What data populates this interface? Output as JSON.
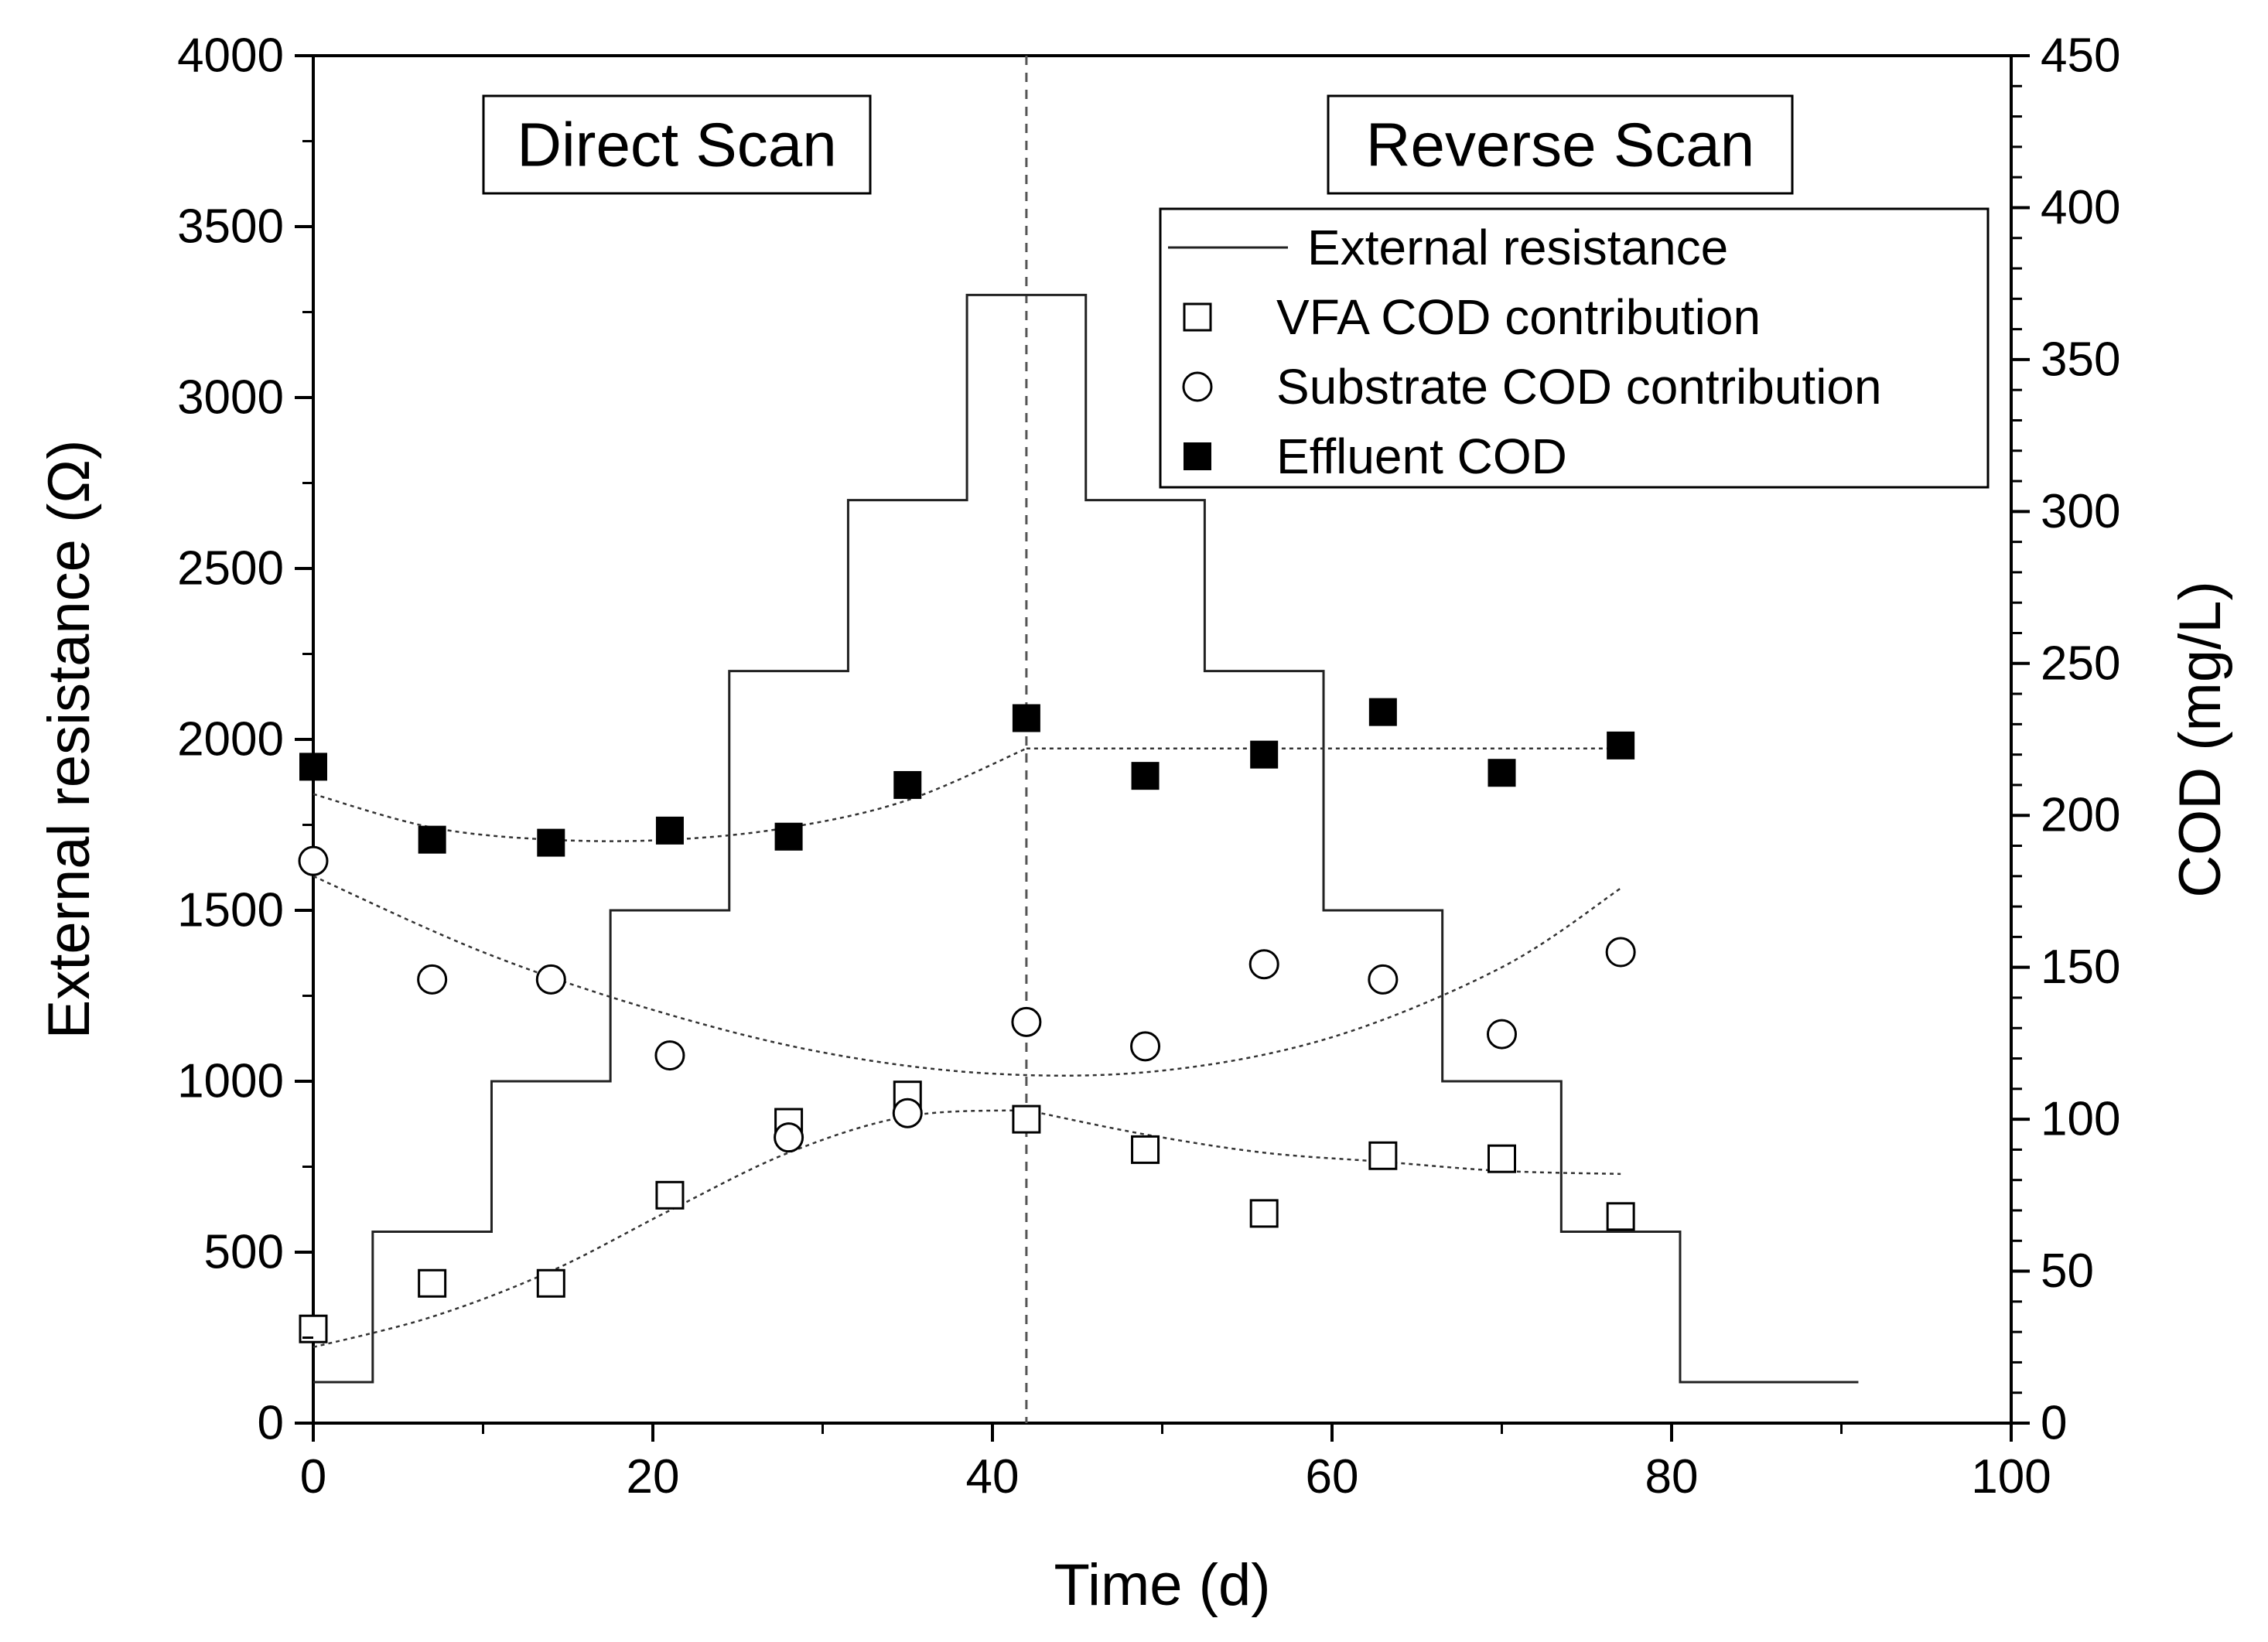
{
  "chart_data": {
    "type": "scatter",
    "title": "",
    "xlabel": "Time (d)",
    "ylabel_left": "External resistance (Ω)",
    "ylabel_right": "COD (mg/L)",
    "xlim": [
      0,
      100
    ],
    "ylim_left": [
      0,
      4000
    ],
    "ylim_right": [
      0,
      450
    ],
    "x_ticks": [
      0,
      20,
      40,
      60,
      80,
      100
    ],
    "y_left_ticks": [
      0,
      500,
      1000,
      1500,
      2000,
      2500,
      3000,
      3500,
      4000
    ],
    "y_right_ticks": [
      0,
      50,
      100,
      150,
      200,
      250,
      300,
      350,
      400,
      450
    ],
    "grid": false,
    "legend_position": "top-right",
    "annotations": [
      {
        "id": "direct",
        "text": "Direct Scan"
      },
      {
        "id": "reverse",
        "text": "Reverse Scan"
      }
    ],
    "divider_x": 42,
    "series": [
      {
        "name": "External resistance",
        "kind": "step-line",
        "axis": "left",
        "x": [
          0,
          3.5,
          3.5,
          10.5,
          10.5,
          17.5,
          17.5,
          24.5,
          24.5,
          31.5,
          31.5,
          38.5,
          38.5,
          45.5,
          45.5,
          52.5,
          52.5,
          59.5,
          59.5,
          66.5,
          66.5,
          73.5,
          73.5,
          80.5,
          80.5,
          91
        ],
        "y": [
          120,
          120,
          560,
          560,
          1000,
          1000,
          1500,
          1500,
          2200,
          2200,
          2700,
          2700,
          3300,
          3300,
          2700,
          2700,
          2200,
          2200,
          1500,
          1500,
          1000,
          1000,
          560,
          560,
          120,
          120
        ]
      },
      {
        "name": "VFA COD contribution",
        "kind": "marker",
        "marker": "open-square",
        "axis": "right",
        "x": [
          0,
          7,
          14,
          21,
          28,
          35,
          42,
          49,
          56,
          63,
          70,
          77
        ],
        "y": [
          31,
          46,
          46,
          75,
          99,
          108,
          100,
          90,
          69,
          88,
          87,
          68
        ]
      },
      {
        "name": "Substrate COD contribution",
        "kind": "marker",
        "marker": "open-circle",
        "axis": "right",
        "x": [
          0,
          7,
          14,
          21,
          28,
          35,
          42,
          49,
          56,
          63,
          70,
          77
        ],
        "y": [
          185,
          146,
          146,
          121,
          94,
          102,
          132,
          124,
          151,
          146,
          128,
          155
        ]
      },
      {
        "name": "Effluent COD",
        "kind": "marker",
        "marker": "filled-square",
        "axis": "right",
        "x": [
          0,
          7,
          14,
          21,
          28,
          35,
          42,
          49,
          56,
          63,
          70,
          77
        ],
        "y": [
          216,
          192,
          191,
          195,
          193,
          210,
          232,
          213,
          220,
          234,
          214,
          223
        ]
      }
    ],
    "fit_lines": [
      {
        "name": "Effluent COD fit (direct)",
        "axis": "right",
        "x": [
          0,
          7,
          14,
          21,
          28,
          35,
          42
        ],
        "y": [
          207,
          196,
          192,
          192,
          196,
          205,
          222
        ]
      },
      {
        "name": "Effluent COD fit (reverse)",
        "axis": "right",
        "x": [
          42,
          77
        ],
        "y": [
          222,
          222
        ]
      },
      {
        "name": "Substrate COD fit",
        "axis": "right",
        "x": [
          0,
          10,
          20,
          30,
          40,
          50,
          60,
          70,
          77
        ],
        "y": [
          180,
          155,
          136,
          122,
          115,
          116,
          127,
          150,
          176
        ]
      },
      {
        "name": "VFA COD fit (direct)",
        "axis": "right",
        "x": [
          0,
          7,
          14,
          21,
          28,
          35,
          42
        ],
        "y": [
          25,
          35,
          50,
          70,
          89,
          101,
          103
        ]
      },
      {
        "name": "VFA COD fit (reverse)",
        "axis": "right",
        "x": [
          42,
          49,
          56,
          63,
          70,
          77
        ],
        "y": [
          103,
          95,
          89,
          86,
          83,
          82
        ]
      }
    ]
  }
}
